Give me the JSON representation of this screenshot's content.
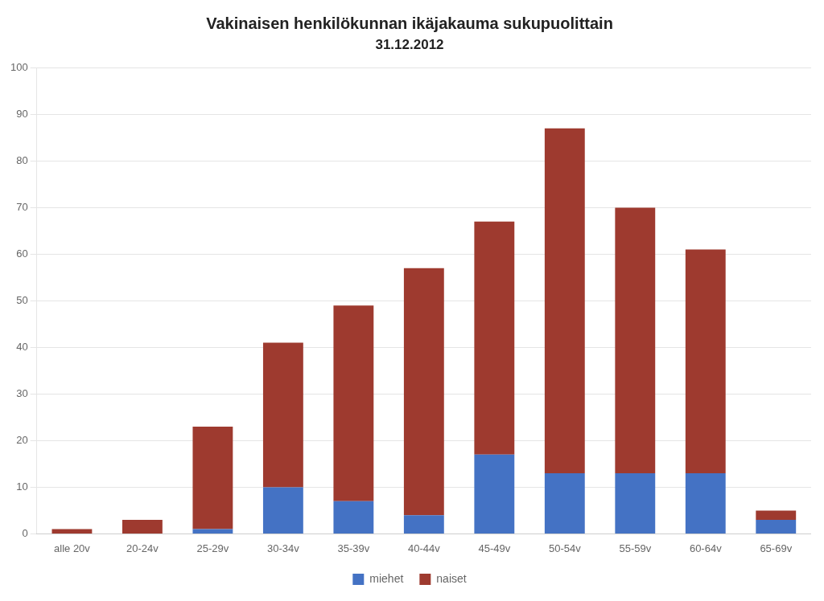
{
  "chart_data": {
    "type": "bar",
    "title": "Vakinaisen henkilökunnan ikäjakauma sukupuolittain",
    "subtitle": "31.12.2012",
    "categories": [
      "alle 20v",
      "20-24v",
      "25-29v",
      "30-34v",
      "35-39v",
      "40-44v",
      "45-49v",
      "50-54v",
      "55-59v",
      "60-64v",
      "65-69v"
    ],
    "series": [
      {
        "name": "miehet",
        "color": "#4472C4",
        "values": [
          0,
          0,
          1,
          10,
          7,
          4,
          17,
          13,
          13,
          13,
          3
        ]
      },
      {
        "name": "naiset",
        "color": "#9E3A2F",
        "values": [
          1,
          3,
          22,
          31,
          42,
          53,
          50,
          74,
          57,
          48,
          2
        ]
      }
    ],
    "ylim": [
      0,
      100
    ],
    "yticks": [
      0,
      10,
      20,
      30,
      40,
      50,
      60,
      70,
      80,
      90,
      100
    ],
    "grid": true,
    "stacked": true,
    "legend": "bottom"
  }
}
